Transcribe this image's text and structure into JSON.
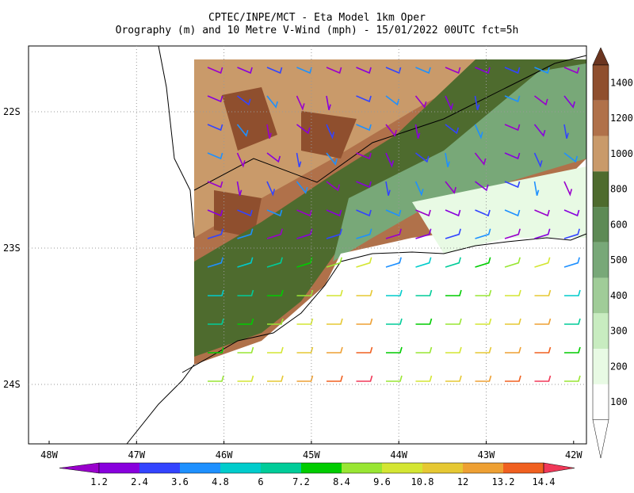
{
  "header": {
    "title": "CPTEC/INPE/MCT -  Eta Model 1km Oper",
    "subtitle": "Orography (m) and 10 Metre V-Wind (mph) - 15/01/2022 00UTC fct=5h"
  },
  "map": {
    "x_labels": [
      "48W",
      "47W",
      "46W",
      "45W",
      "44W",
      "43W",
      "42W"
    ],
    "y_labels": [
      "22S",
      "23S",
      "24S"
    ]
  },
  "orography_colorbar": {
    "labels": [
      1400,
      1200,
      1000,
      800,
      600,
      500,
      400,
      300,
      200,
      100
    ],
    "colors": [
      "#6b3520",
      "#8f4f2e",
      "#b0714a",
      "#c99a6a",
      "#4e6b2e",
      "#5d8a55",
      "#78a878",
      "#a0cc98",
      "#c8ecc0",
      "#e8fae4",
      "#ffffff"
    ]
  },
  "wind_colorbar": {
    "labels": [
      1.2,
      2.4,
      3.6,
      4.8,
      6,
      7.2,
      8.4,
      9.6,
      10.8,
      12,
      13.2,
      14.4
    ],
    "colors": [
      "#9900cc",
      "#8800dd",
      "#3344ff",
      "#1e90ff",
      "#00cccc",
      "#00cc99",
      "#00cc00",
      "#99e633",
      "#d4e633",
      "#e6c833",
      "#eea033",
      "#f06020",
      "#f03858"
    ]
  }
}
